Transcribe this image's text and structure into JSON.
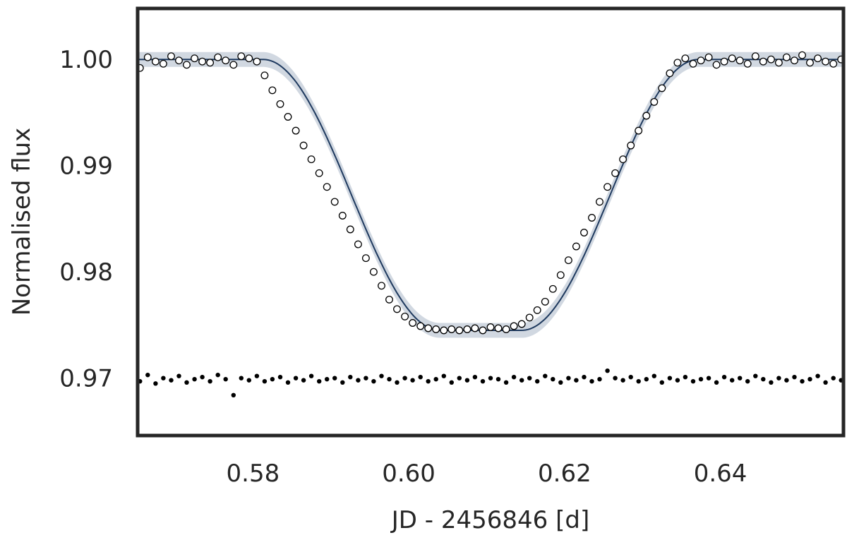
{
  "chart_data": {
    "type": "scatter",
    "title": "",
    "xlabel": "JD - 2456846 [d]",
    "ylabel": "Normalised flux",
    "xlim": [
      0.5652,
      0.6558
    ],
    "ylim": [
      0.9646,
      1.0048
    ],
    "x_ticks": [
      {
        "value": 0.58,
        "label": "0.58"
      },
      {
        "value": 0.6,
        "label": "0.60"
      },
      {
        "value": 0.62,
        "label": "0.62"
      },
      {
        "value": 0.64,
        "label": "0.64"
      }
    ],
    "y_ticks": [
      {
        "value": 0.97,
        "label": "0.97"
      },
      {
        "value": 0.98,
        "label": "0.98"
      },
      {
        "value": 0.99,
        "label": "0.99"
      },
      {
        "value": 1.0,
        "label": "1.00"
      }
    ],
    "grid": false,
    "legend": "none",
    "colors": {
      "frame": "#262626",
      "model_line": "#1f3a5f",
      "model_band": "#c9d1dc",
      "data_fill": "#ffffff",
      "data_edge": "#000000",
      "residual_fill": "#000000"
    },
    "transit_model": {
      "baseline": 1.0,
      "depth": 0.0255,
      "ingress_start": 0.5813,
      "full_start": 0.604,
      "full_end": 0.6145,
      "egress_end": 0.6372,
      "band_halfwidth": 0.0007
    },
    "series": [
      {
        "role": "light-curve",
        "x": [
          0.5655,
          0.5665,
          0.5675,
          0.5685,
          0.5695,
          0.5705,
          0.5715,
          0.5725,
          0.5735,
          0.5745,
          0.5755,
          0.5765,
          0.5775,
          0.5785,
          0.5795,
          0.5805,
          0.5815,
          0.5825,
          0.5835,
          0.5845,
          0.5855,
          0.5865,
          0.5875,
          0.5885,
          0.5895,
          0.5905,
          0.5915,
          0.5925,
          0.5935,
          0.5945,
          0.5955,
          0.5965,
          0.5975,
          0.5985,
          0.5995,
          0.6005,
          0.6015,
          0.6025,
          0.6035,
          0.6045,
          0.6055,
          0.6065,
          0.6075,
          0.6085,
          0.6095,
          0.6105,
          0.6115,
          0.6125,
          0.6135,
          0.6145,
          0.6155,
          0.6165,
          0.6175,
          0.6185,
          0.6195,
          0.6205,
          0.6215,
          0.6225,
          0.6235,
          0.6245,
          0.6255,
          0.6265,
          0.6275,
          0.6285,
          0.6295,
          0.6305,
          0.6315,
          0.6325,
          0.6335,
          0.6345,
          0.6355,
          0.6365,
          0.6375,
          0.6385,
          0.6395,
          0.6405,
          0.6415,
          0.6425,
          0.6435,
          0.6445,
          0.6455,
          0.6465,
          0.6475,
          0.6485,
          0.6495,
          0.6505,
          0.6515,
          0.6525,
          0.6535,
          0.6545,
          0.6555
        ],
        "y": [
          0.9992,
          1.0002,
          0.9998,
          0.9996,
          1.0003,
          0.9999,
          0.9995,
          1.0001,
          0.9998,
          0.9997,
          1.0002,
          0.9999,
          0.9995,
          1.0003,
          1.0001,
          0.9998,
          0.9985,
          0.9971,
          0.9958,
          0.9946,
          0.9933,
          0.9919,
          0.9906,
          0.9893,
          0.988,
          0.9866,
          0.9853,
          0.984,
          0.9826,
          0.9813,
          0.98,
          0.9787,
          0.9774,
          0.9765,
          0.9758,
          0.9752,
          0.9749,
          0.9747,
          0.9746,
          0.9745,
          0.9746,
          0.9745,
          0.9746,
          0.9747,
          0.9745,
          0.9748,
          0.9747,
          0.9746,
          0.9749,
          0.9751,
          0.9757,
          0.9764,
          0.9772,
          0.9784,
          0.9797,
          0.9811,
          0.9824,
          0.9837,
          0.9851,
          0.9866,
          0.988,
          0.9893,
          0.9906,
          0.9919,
          0.9933,
          0.9947,
          0.996,
          0.9973,
          0.9987,
          0.9997,
          1.0001,
          0.9996,
          0.9999,
          1.0002,
          0.9995,
          0.9998,
          1.0001,
          0.9999,
          0.9996,
          1.0003,
          0.9998,
          1.0,
          0.9997,
          1.0002,
          0.9999,
          1.0004,
          0.9997,
          1.0001,
          0.9998,
          0.9996,
          1.0
        ]
      },
      {
        "role": "residuals",
        "offset": 0.97,
        "x": [
          0.5655,
          0.5665,
          0.5675,
          0.5685,
          0.5695,
          0.5705,
          0.5715,
          0.5725,
          0.5735,
          0.5745,
          0.5755,
          0.5765,
          0.5775,
          0.5785,
          0.5795,
          0.5805,
          0.5815,
          0.5825,
          0.5835,
          0.5845,
          0.5855,
          0.5865,
          0.5875,
          0.5885,
          0.5895,
          0.5905,
          0.5915,
          0.5925,
          0.5935,
          0.5945,
          0.5955,
          0.5965,
          0.5975,
          0.5985,
          0.5995,
          0.6005,
          0.6015,
          0.6025,
          0.6035,
          0.6045,
          0.6055,
          0.6065,
          0.6075,
          0.6085,
          0.6095,
          0.6105,
          0.6115,
          0.6125,
          0.6135,
          0.6145,
          0.6155,
          0.6165,
          0.6175,
          0.6185,
          0.6195,
          0.6205,
          0.6215,
          0.6225,
          0.6235,
          0.6245,
          0.6255,
          0.6265,
          0.6275,
          0.6285,
          0.6295,
          0.6305,
          0.6315,
          0.6325,
          0.6335,
          0.6345,
          0.6355,
          0.6365,
          0.6375,
          0.6385,
          0.6395,
          0.6405,
          0.6415,
          0.6425,
          0.6435,
          0.6445,
          0.6455,
          0.6465,
          0.6475,
          0.6485,
          0.6495,
          0.6505,
          0.6515,
          0.6525,
          0.6535,
          0.6545,
          0.6555
        ],
        "y": [
          0.9697,
          0.9703,
          0.9695,
          0.97,
          0.9698,
          0.9702,
          0.9696,
          0.9699,
          0.9701,
          0.9697,
          0.9703,
          0.9699,
          0.9684,
          0.97,
          0.9698,
          0.9702,
          0.9697,
          0.9699,
          0.9701,
          0.9696,
          0.97,
          0.9698,
          0.9702,
          0.9697,
          0.9699,
          0.97,
          0.9696,
          0.9701,
          0.9698,
          0.97,
          0.9697,
          0.9702,
          0.9699,
          0.9696,
          0.97,
          0.9698,
          0.9701,
          0.9697,
          0.9699,
          0.9702,
          0.9696,
          0.97,
          0.9698,
          0.9701,
          0.9697,
          0.97,
          0.9699,
          0.9696,
          0.9701,
          0.9698,
          0.97,
          0.9697,
          0.9702,
          0.9699,
          0.9696,
          0.97,
          0.9698,
          0.9701,
          0.9697,
          0.9699,
          0.9707,
          0.97,
          0.9698,
          0.9701,
          0.9697,
          0.9699,
          0.9702,
          0.9696,
          0.97,
          0.9698,
          0.9701,
          0.9697,
          0.9699,
          0.97,
          0.9696,
          0.9701,
          0.9698,
          0.97,
          0.9697,
          0.9702,
          0.9699,
          0.9696,
          0.97,
          0.9698,
          0.9701,
          0.9697,
          0.9699,
          0.9702,
          0.9696,
          0.97,
          0.9698
        ]
      }
    ]
  }
}
